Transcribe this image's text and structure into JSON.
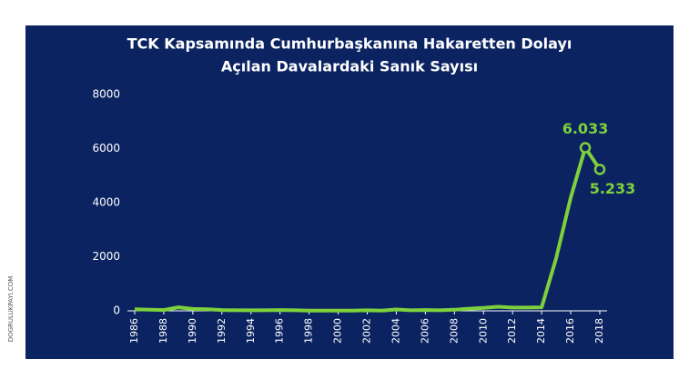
{
  "chart_data": {
    "type": "line",
    "title": [
      "TCK Kapsamında Cumhurbaşkanına Hakaretten Dolayı",
      "Açılan Davalardaki Sanık Sayısı"
    ],
    "x": [
      1986,
      1987,
      1988,
      1989,
      1990,
      1991,
      1992,
      1993,
      1994,
      1995,
      1996,
      1997,
      1998,
      1999,
      2000,
      2001,
      2002,
      2003,
      2004,
      2005,
      2006,
      2007,
      2008,
      2009,
      2010,
      2011,
      2012,
      2013,
      2014,
      2015,
      2016,
      2017,
      2018
    ],
    "series": [
      {
        "name": "Sanık Sayısı",
        "color": "#7ed03c",
        "values": [
          60,
          40,
          30,
          130,
          70,
          60,
          30,
          20,
          20,
          20,
          30,
          20,
          10,
          10,
          10,
          10,
          20,
          10,
          50,
          20,
          30,
          20,
          40,
          80,
          110,
          150,
          120,
          120,
          132,
          1953,
          4187,
          6033,
          5233
        ],
        "value_labels": [
          null,
          null,
          null,
          null,
          null,
          null,
          null,
          null,
          null,
          null,
          null,
          null,
          null,
          null,
          null,
          null,
          null,
          null,
          null,
          null,
          null,
          null,
          null,
          null,
          null,
          null,
          null,
          null,
          null,
          null,
          null,
          "6.033",
          "5.233"
        ]
      }
    ],
    "xlim": [
      1986,
      2018
    ],
    "xticks": [
      1986,
      1988,
      1990,
      1992,
      1994,
      1996,
      1998,
      2000,
      2002,
      2004,
      2006,
      2008,
      2010,
      2012,
      2014,
      2016,
      2018
    ],
    "ylim": [
      0,
      8000
    ],
    "yticks": [
      0,
      2000,
      4000,
      6000,
      8000
    ],
    "background": "#0b2461",
    "watermark": "DOGRULUKPAYI.COM"
  }
}
